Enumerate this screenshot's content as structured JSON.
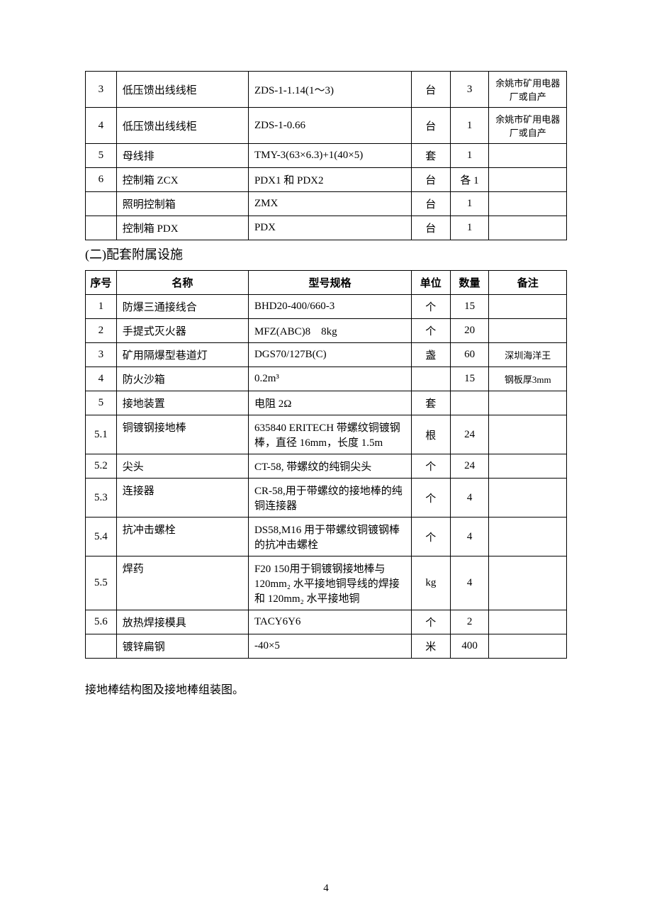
{
  "table1": {
    "columns_widths": [
      40,
      170,
      210,
      50,
      50,
      100
    ],
    "rows": [
      {
        "idx": "3",
        "name": "低压馈出线线柜",
        "spec": "ZDS-1-1.14(1～3)",
        "unit": "台",
        "qty": "3",
        "note": "余姚市矿用电器厂或自产"
      },
      {
        "idx": "4",
        "name": "低压馈出线线柜",
        "spec": "ZDS-1-0.66",
        "unit": "台",
        "qty": "1",
        "note": "余姚市矿用电器厂或自产"
      },
      {
        "idx": "5",
        "name": "母线排",
        "spec": "TMY-3(63×6.3)+1(40×5)",
        "unit": "套",
        "qty": "1",
        "note": ""
      },
      {
        "idx": "6",
        "name": "控制箱 ZCX",
        "spec": "PDX1 和 PDX2",
        "unit": "台",
        "qty": "各 1",
        "note": ""
      },
      {
        "idx": "",
        "name": "照明控制箱",
        "spec": "ZMX",
        "unit": "台",
        "qty": "1",
        "note": ""
      },
      {
        "idx": "",
        "name": "控制箱 PDX",
        "spec": "PDX",
        "unit": "台",
        "qty": "1",
        "note": ""
      }
    ]
  },
  "section_heading": "(二)配套附属设施",
  "table2": {
    "headers": {
      "idx": "序号",
      "name": "名称",
      "spec": "型号规格",
      "unit": "单位",
      "qty": "数量",
      "note": "备注"
    },
    "rows": [
      {
        "idx": "1",
        "name": "防爆三通接线合",
        "spec": "BHD20-400/660-3",
        "unit": "个",
        "qty": "15",
        "note": ""
      },
      {
        "idx": "2",
        "name": "手提式灭火器",
        "spec": "MFZ(ABC)8　8kg",
        "unit": "个",
        "qty": "20",
        "note": ""
      },
      {
        "idx": "3",
        "name": "矿用隔爆型巷道灯",
        "spec": "DGS70/127B(C)",
        "unit": "盏",
        "qty": "60",
        "note": "深圳海洋王"
      },
      {
        "idx": "4",
        "name": "防火沙箱",
        "spec": "0.2m³",
        "unit": "",
        "qty": "15",
        "note": "钢板厚3mm"
      },
      {
        "idx": "5",
        "name": "接地装置",
        "spec": "电阻 2Ω",
        "unit": "套",
        "qty": "",
        "note": ""
      },
      {
        "idx": "5.1",
        "name": "铜镀钢接地棒",
        "spec": "635840 ERITECH  带螺纹铜镀钢棒，直径 16mm，长度 1.5m",
        "unit": "根",
        "qty": "24",
        "note": ""
      },
      {
        "idx": "5.2",
        "name": "尖头",
        "spec": "CT-58,  带螺纹的纯铜尖头",
        "unit": "个",
        "qty": "24",
        "note": ""
      },
      {
        "idx": "5.3",
        "name": "连接器",
        "spec": "CR-58,用于带螺纹的接地棒的纯铜连接器",
        "unit": "个",
        "qty": "4",
        "note": ""
      },
      {
        "idx": "5.4",
        "name": "抗冲击螺栓",
        "spec": "DS58,M16 用于带螺纹铜镀钢棒的抗冲击螺栓",
        "unit": "个",
        "qty": "4",
        "note": ""
      },
      {
        "idx": "5.5",
        "name": "焊药",
        "spec": "F20 150用于铜镀钢接地棒与120mm₂ 水平接地铜导线的焊接和 120mm₂ 水平接地铜",
        "unit": "kg",
        "qty": "4",
        "note": ""
      },
      {
        "idx": "5.6",
        "name": "放热焊接模具",
        "spec": "TACY6Y6",
        "unit": "个",
        "qty": "2",
        "note": ""
      },
      {
        "idx": "",
        "name": "镀锌扁钢",
        "spec": "-40×5",
        "unit": "米",
        "qty": "400",
        "note": ""
      }
    ]
  },
  "bottom_text": "接地棒结构图及接地棒组装图。",
  "page_number": "4"
}
